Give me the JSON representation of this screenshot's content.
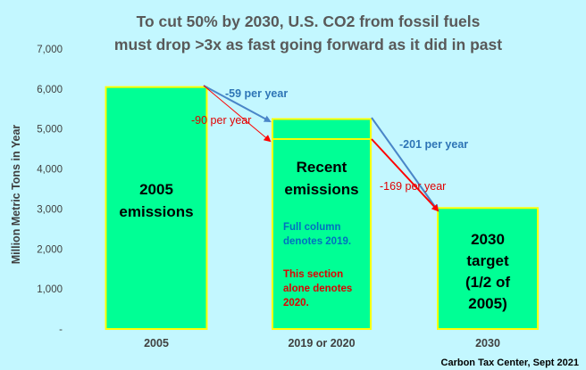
{
  "chart_data": {
    "type": "bar",
    "title": "To cut 50% by 2030, U.S. CO2 from fossil fuels",
    "subtitle": "must drop >3x as fast going forward as it did in past",
    "ylabel": "Million Metric Tons in Year",
    "xlabel": "",
    "ylim": [
      0,
      7000
    ],
    "yticks": [
      "-",
      "1,000",
      "2,000",
      "3,000",
      "4,000",
      "5,000",
      "6,000",
      "7,000"
    ],
    "grid": false,
    "categories": [
      "2005",
      "2019 or 2020",
      "2030"
    ],
    "bars": [
      {
        "category": "2005",
        "value": 6050,
        "label_lines": [
          "2005",
          "emissions"
        ]
      },
      {
        "category": "2019 or 2020",
        "value": 5250,
        "inner_value": 4750,
        "label_lines": [
          "Recent",
          "emissions"
        ]
      },
      {
        "category": "2030",
        "value": 3025,
        "label_lines": [
          "2030",
          "target",
          "(1/2 of",
          "2005)"
        ]
      }
    ],
    "notes": {
      "blue": [
        "Full column",
        "denotes 2019."
      ],
      "red": [
        "This section",
        "alone denotes",
        "2020."
      ]
    },
    "annotations": [
      {
        "text": "-59 per year",
        "color": "#2e75b6"
      },
      {
        "text": "-90 per year",
        "color": "#e00000"
      },
      {
        "text": "-201 per year",
        "color": "#2e75b6"
      },
      {
        "text": "-169 per year",
        "color": "#e00000"
      }
    ],
    "colors": {
      "background": "#c3f7ff",
      "bar_fill": "#00ff95",
      "bar_border": "#ffff00",
      "blue_arrow": "#4a86c8",
      "red_arrow": "#ff0000"
    }
  },
  "credit": "Carbon Tax Center, Sept 2021"
}
